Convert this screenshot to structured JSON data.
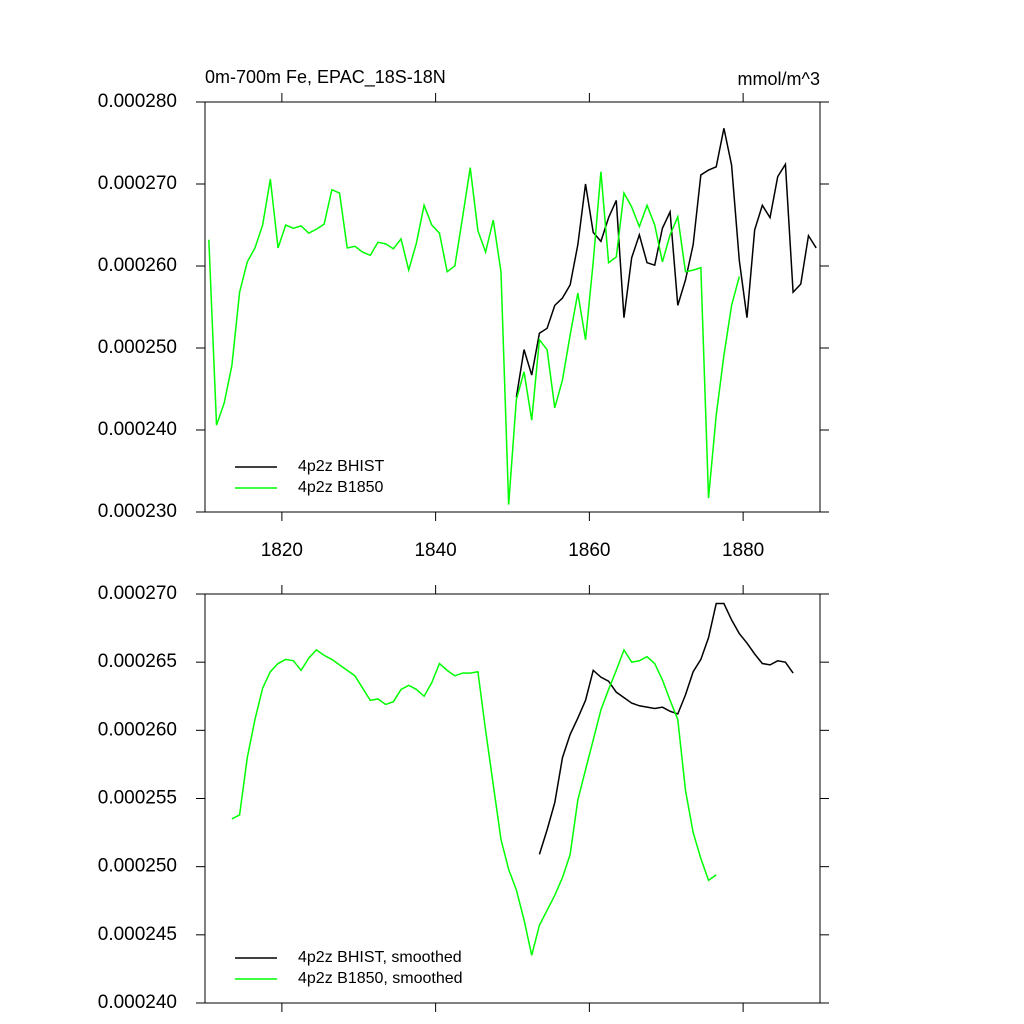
{
  "chart_data": [
    {
      "type": "line",
      "title": "0m-700m Fe, EPAC_18S-18N",
      "units": "mmol/m^3",
      "x": [
        1810.5,
        1811.5,
        1812.5,
        1813.5,
        1814.5,
        1815.5,
        1816.5,
        1817.5,
        1818.5,
        1819.5,
        1820.5,
        1821.5,
        1822.5,
        1823.5,
        1824.5,
        1825.5,
        1826.5,
        1827.5,
        1828.5,
        1829.5,
        1830.5,
        1831.5,
        1832.5,
        1833.5,
        1834.5,
        1835.5,
        1836.5,
        1837.5,
        1838.5,
        1839.5,
        1840.5,
        1841.5,
        1842.5,
        1843.5,
        1844.5,
        1845.5,
        1846.5,
        1847.5,
        1848.5,
        1849.5,
        1850.5,
        1851.5,
        1852.5,
        1853.5,
        1854.5,
        1855.5,
        1856.5,
        1857.5,
        1858.5,
        1859.5,
        1860.5,
        1861.5,
        1862.5,
        1863.5,
        1864.5,
        1865.5,
        1866.5,
        1867.5,
        1868.5,
        1869.5,
        1870.5,
        1871.5,
        1872.5,
        1873.5,
        1874.5,
        1875.5,
        1876.5,
        1877.5,
        1878.5,
        1879.5,
        1880.5,
        1881.5,
        1882.5,
        1883.5,
        1884.5,
        1885.5,
        1886.5,
        1887.5,
        1888.5,
        1889.5
      ],
      "series": [
        {
          "name": "4p2z BHIST",
          "color": "#000000",
          "values": [
            null,
            null,
            null,
            null,
            null,
            null,
            null,
            null,
            null,
            null,
            null,
            null,
            null,
            null,
            null,
            null,
            null,
            null,
            null,
            null,
            null,
            null,
            null,
            null,
            null,
            null,
            null,
            null,
            null,
            null,
            null,
            null,
            null,
            null,
            null,
            null,
            null,
            null,
            null,
            null,
            0.000244,
            0.0002498,
            0.0002467,
            0.0002518,
            0.0002524,
            0.0002552,
            0.0002561,
            0.0002577,
            0.0002626,
            0.00027,
            0.0002641,
            0.000263,
            0.0002659,
            0.000268,
            0.0002537,
            0.000261,
            0.0002638,
            0.0002604,
            0.0002601,
            0.0002646,
            0.0002666,
            0.0002552,
            0.0002583,
            0.0002626,
            0.0002711,
            0.0002717,
            0.0002721,
            0.0002768,
            0.0002723,
            0.0002607,
            0.0002537,
            0.0002644,
            0.0002674,
            0.0002659,
            0.0002709,
            0.0002724,
            0.0002568,
            0.0002578,
            0.0002637,
            0.0002622
          ]
        },
        {
          "name": "4p2z B1850",
          "color": "#00ff00",
          "values": [
            0.0002632,
            0.0002406,
            0.0002433,
            0.0002479,
            0.0002568,
            0.0002605,
            0.0002622,
            0.000265,
            0.0002706,
            0.0002622,
            0.000265,
            0.0002646,
            0.0002649,
            0.000264,
            0.0002645,
            0.0002651,
            0.0002693,
            0.0002689,
            0.0002622,
            0.0002624,
            0.0002617,
            0.0002613,
            0.0002629,
            0.0002627,
            0.0002621,
            0.0002633,
            0.0002595,
            0.0002628,
            0.0002674,
            0.000265,
            0.000264,
            0.0002593,
            0.00026,
            0.0002659,
            0.000272,
            0.0002643,
            0.0002617,
            0.0002656,
            0.0002593,
            0.0002309,
            0.0002437,
            0.0002471,
            0.0002412,
            0.000251,
            0.0002498,
            0.0002427,
            0.0002461,
            0.0002516,
            0.0002567,
            0.000251,
            0.0002605,
            0.0002715,
            0.0002604,
            0.0002611,
            0.0002689,
            0.0002672,
            0.0002648,
            0.0002674,
            0.000265,
            0.0002605,
            0.0002638,
            0.000266,
            0.0002593,
            0.0002595,
            0.0002598,
            0.0002317,
            0.0002418,
            0.0002491,
            0.0002552,
            0.0002587,
            null,
            null,
            null,
            null,
            null,
            null,
            null,
            null,
            null,
            null
          ]
        }
      ],
      "xlim": [
        1810,
        1890
      ],
      "xticks": [
        1820,
        1840,
        1860,
        1880
      ],
      "ylim": [
        0.00023,
        0.00028
      ],
      "yticks": [
        {
          "value": 0.00023,
          "label": "0.000230"
        },
        {
          "value": 0.00024,
          "label": "0.000240"
        },
        {
          "value": 0.00025,
          "label": "0.000250"
        },
        {
          "value": 0.00026,
          "label": "0.000260"
        },
        {
          "value": 0.00027,
          "label": "0.000270"
        },
        {
          "value": 0.00028,
          "label": "0.000280"
        }
      ],
      "legend": "lower-left"
    },
    {
      "type": "line",
      "x": [
        1810.5,
        1811.5,
        1812.5,
        1813.5,
        1814.5,
        1815.5,
        1816.5,
        1817.5,
        1818.5,
        1819.5,
        1820.5,
        1821.5,
        1822.5,
        1823.5,
        1824.5,
        1825.5,
        1826.5,
        1827.5,
        1828.5,
        1829.5,
        1830.5,
        1831.5,
        1832.5,
        1833.5,
        1834.5,
        1835.5,
        1836.5,
        1837.5,
        1838.5,
        1839.5,
        1840.5,
        1841.5,
        1842.5,
        1843.5,
        1844.5,
        1845.5,
        1846.5,
        1847.5,
        1848.5,
        1849.5,
        1850.5,
        1851.5,
        1852.5,
        1853.5,
        1854.5,
        1855.5,
        1856.5,
        1857.5,
        1858.5,
        1859.5,
        1860.5,
        1861.5,
        1862.5,
        1863.5,
        1864.5,
        1865.5,
        1866.5,
        1867.5,
        1868.5,
        1869.5,
        1870.5,
        1871.5,
        1872.5,
        1873.5,
        1874.5,
        1875.5,
        1876.5,
        1877.5,
        1878.5,
        1879.5,
        1880.5,
        1881.5,
        1882.5,
        1883.5,
        1884.5,
        1885.5,
        1886.5,
        1887.5,
        1888.5,
        1889.5
      ],
      "series": [
        {
          "name": "4p2z BHIST, smoothed",
          "color": "#000000",
          "values": [
            null,
            null,
            null,
            null,
            null,
            null,
            null,
            null,
            null,
            null,
            null,
            null,
            null,
            null,
            null,
            null,
            null,
            null,
            null,
            null,
            null,
            null,
            null,
            null,
            null,
            null,
            null,
            null,
            null,
            null,
            null,
            null,
            null,
            null,
            null,
            null,
            null,
            null,
            null,
            null,
            null,
            null,
            null,
            0.0002509,
            0.0002527,
            0.0002547,
            0.000258,
            0.0002597,
            0.0002609,
            0.0002622,
            0.0002644,
            0.0002639,
            0.0002636,
            0.0002628,
            0.0002624,
            0.000262,
            0.0002618,
            0.0002617,
            0.0002616,
            0.0002617,
            0.0002614,
            0.0002612,
            0.0002626,
            0.0002643,
            0.0002652,
            0.0002668,
            0.0002693,
            0.0002693,
            0.0002681,
            0.0002671,
            0.0002664,
            0.0002656,
            0.0002649,
            0.0002648,
            0.0002651,
            0.000265,
            0.0002642,
            null,
            null,
            null
          ]
        },
        {
          "name": "4p2z B1850, smoothed",
          "color": "#00ff00",
          "values": [
            null,
            null,
            null,
            0.0002535,
            0.0002538,
            0.000258,
            0.0002608,
            0.0002631,
            0.0002643,
            0.0002649,
            0.0002652,
            0.0002651,
            0.0002644,
            0.0002653,
            0.0002659,
            0.0002655,
            0.0002652,
            0.0002648,
            0.0002644,
            0.000264,
            0.0002631,
            0.0002622,
            0.0002623,
            0.0002619,
            0.0002621,
            0.000263,
            0.0002633,
            0.000263,
            0.0002625,
            0.0002635,
            0.0002649,
            0.0002644,
            0.000264,
            0.0002642,
            0.0002642,
            0.0002643,
            0.00026,
            0.000256,
            0.000252,
            0.0002498,
            0.0002483,
            0.0002461,
            0.0002435,
            0.0002457,
            0.0002468,
            0.0002479,
            0.0002492,
            0.0002509,
            0.0002549,
            0.0002571,
            0.0002593,
            0.0002615,
            0.000263,
            0.0002644,
            0.0002659,
            0.000265,
            0.0002651,
            0.0002654,
            0.0002649,
            0.0002637,
            0.0002622,
            0.0002608,
            0.0002556,
            0.0002525,
            0.0002506,
            0.000249,
            0.0002494,
            null,
            null,
            null,
            null,
            null,
            null,
            null,
            null,
            null,
            null,
            null,
            null,
            null
          ]
        }
      ],
      "xlim": [
        1810,
        1890
      ],
      "xticks": [
        1820,
        1840,
        1860,
        1880
      ],
      "ylim": [
        0.00024,
        0.00027
      ],
      "yticks": [
        {
          "value": 0.00024,
          "label": "0.000240"
        },
        0.000245,
        {
          "value": 0.00025,
          "label": "0.000250"
        },
        0.000255,
        {
          "value": 0.00026,
          "label": "0.000260"
        },
        0.000265,
        {
          "value": 0.00027,
          "label": "0.000270"
        }
      ],
      "legend": "lower-left"
    }
  ]
}
